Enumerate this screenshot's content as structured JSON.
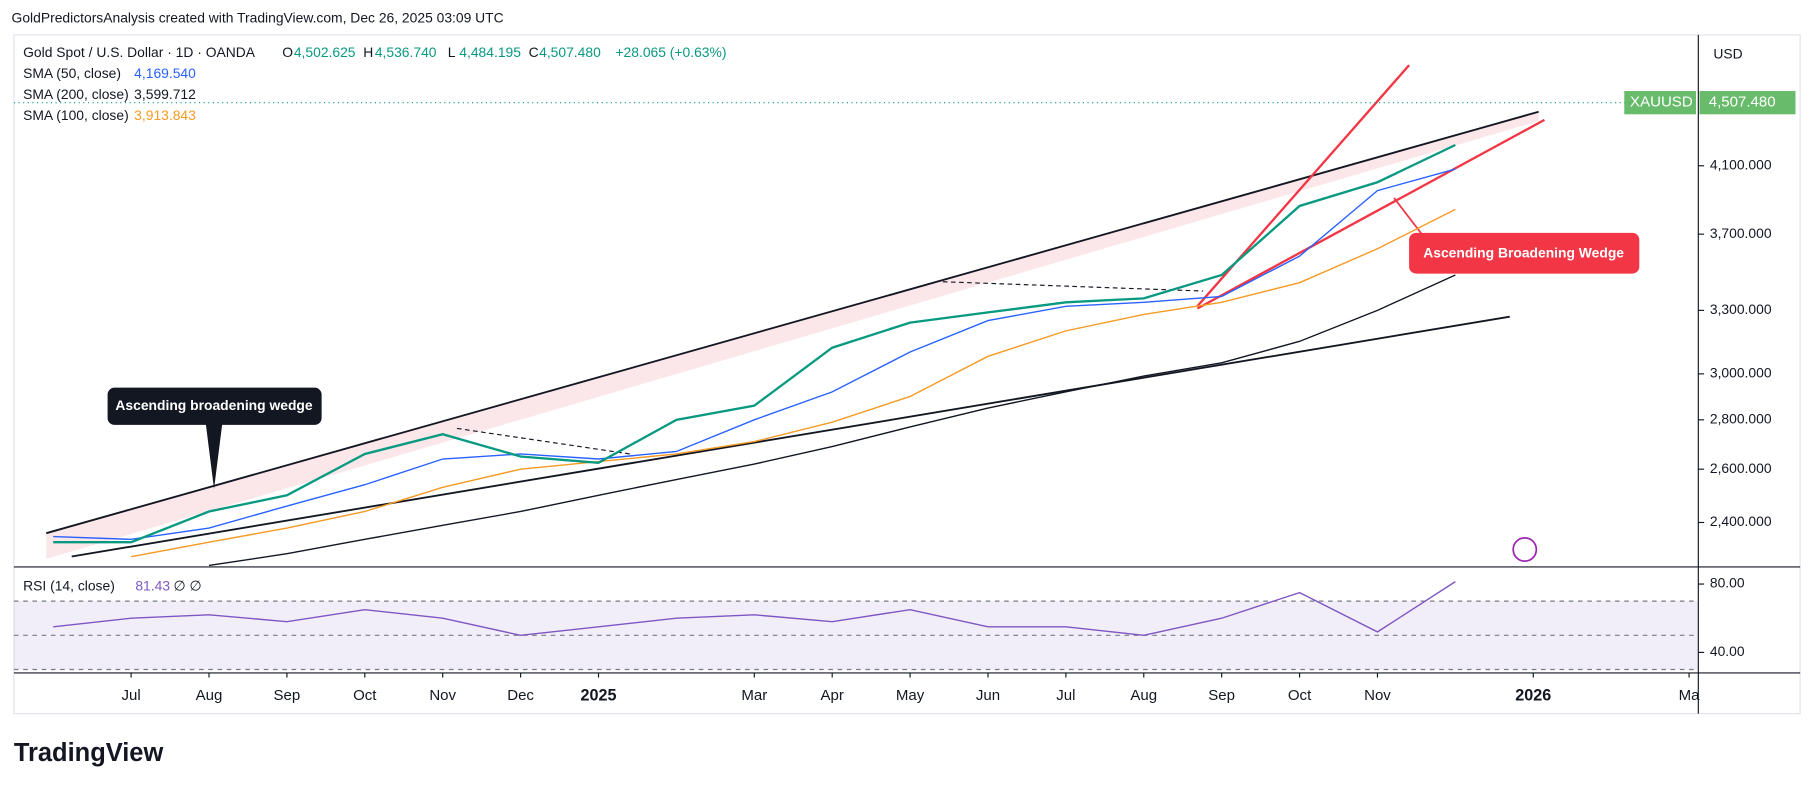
{
  "header": {
    "attribution": "GoldPredictorsAnalysis created with TradingView.com, Dec 26, 2025 03:09 UTC"
  },
  "brand": "TradingView",
  "chart_data": [
    {
      "type": "line",
      "title": "Gold Spot / U.S. Dollar · 1D · OANDA",
      "ohlc": [
        {
          "label": "O",
          "value": "4,502.625"
        },
        {
          "label": "H",
          "value": "4,536.740"
        },
        {
          "label": "L",
          "value": "4,484.195"
        },
        {
          "label": "C",
          "value": "4,507.480"
        }
      ],
      "change": "+28.065 (+0.63%)",
      "currency": "USD",
      "symbol": "XAUUSD",
      "last_price": {
        "value": 4507.48,
        "label": "4,507.480"
      },
      "log_scale": true,
      "x": [
        "2024-06",
        "2024-07",
        "2024-08",
        "2024-09",
        "2024-10",
        "2024-11",
        "2024-12",
        "2025-01",
        "2025-02",
        "2025-03",
        "2025-04",
        "2025-05",
        "2025-06",
        "2025-07",
        "2025-08",
        "2025-09",
        "2025-10",
        "2025-11",
        "2025-12"
      ],
      "price": {
        "color": "#089981",
        "values": [
          2330,
          2330,
          2440,
          2500,
          2660,
          2740,
          2650,
          2625,
          2800,
          2860,
          3120,
          3240,
          3290,
          3340,
          3360,
          3480,
          3860,
          4000,
          4230
        ]
      },
      "series": [
        {
          "name": "SMA (50, close)",
          "last_label": "4,169.540",
          "color": "#2962ff",
          "values": [
            2350,
            2340,
            2380,
            2460,
            2540,
            2640,
            2660,
            2640,
            2670,
            2800,
            2920,
            3100,
            3250,
            3320,
            3340,
            3370,
            3580,
            3950,
            4080
          ]
        },
        {
          "name": "SMA (200, close)",
          "last_label": "3,599.712",
          "color": "#131722",
          "values": [
            null,
            null,
            2250,
            2290,
            2340,
            2390,
            2440,
            2500,
            2560,
            2620,
            2690,
            2770,
            2850,
            2920,
            2990,
            3050,
            3150,
            3300,
            3480
          ]
        },
        {
          "name": "SMA (100, close)",
          "last_label": "3,913.843",
          "color": "#f59a23",
          "values": [
            null,
            2280,
            2330,
            2380,
            2440,
            2530,
            2600,
            2630,
            2660,
            2710,
            2790,
            2900,
            3080,
            3200,
            3280,
            3340,
            3440,
            3620,
            3840
          ]
        }
      ],
      "xlim": [
        "2024-06",
        "2026-03"
      ],
      "xticks": [
        {
          "value": "2024-07",
          "label": "Jul"
        },
        {
          "value": "2024-08",
          "label": "Aug"
        },
        {
          "value": "2024-09",
          "label": "Sep"
        },
        {
          "value": "2024-10",
          "label": "Oct"
        },
        {
          "value": "2024-11",
          "label": "Nov"
        },
        {
          "value": "2024-12",
          "label": "Dec"
        },
        {
          "value": "2025-01",
          "label": "2025"
        },
        {
          "value": "2025-03",
          "label": "Mar"
        },
        {
          "value": "2025-04",
          "label": "Apr"
        },
        {
          "value": "2025-05",
          "label": "May"
        },
        {
          "value": "2025-06",
          "label": "Jun"
        },
        {
          "value": "2025-07",
          "label": "Jul"
        },
        {
          "value": "2025-08",
          "label": "Aug"
        },
        {
          "value": "2025-09",
          "label": "Sep"
        },
        {
          "value": "2025-10",
          "label": "Oct"
        },
        {
          "value": "2025-11",
          "label": "Nov"
        },
        {
          "value": "2026-01",
          "label": "2026"
        },
        {
          "value": "2026-03",
          "label": "Ma"
        }
      ],
      "ylim": [
        2245,
        4990
      ],
      "yticks": [
        {
          "value": 2400,
          "label": "2,400.000"
        },
        {
          "value": 2600,
          "label": "2,600.000"
        },
        {
          "value": 2800,
          "label": "2,800.000"
        },
        {
          "value": 3000,
          "label": "3,000.000"
        },
        {
          "value": 3300,
          "label": "3,300.000"
        },
        {
          "value": 3700,
          "label": "3,700.000"
        },
        {
          "value": 4100,
          "label": "4,100.000"
        }
      ],
      "annotations": [
        "Ascending broadening wedge",
        "Ascending Broadening Wedge"
      ]
    },
    {
      "type": "line",
      "title": "RSI (14, close)",
      "last_label": "81.43",
      "extra": "∅ ∅",
      "series": [
        {
          "color": "#7e57c2",
          "values": [
            55,
            60,
            62,
            58,
            65,
            60,
            50,
            55,
            60,
            62,
            58,
            65,
            55,
            55,
            50,
            60,
            75,
            52,
            81.43
          ]
        }
      ],
      "ylim": [
        28,
        90
      ],
      "yticks": [
        {
          "value": 40,
          "label": "40.00"
        },
        {
          "value": 80,
          "label": "80.00"
        }
      ],
      "levels": [
        30,
        50,
        70
      ]
    }
  ]
}
